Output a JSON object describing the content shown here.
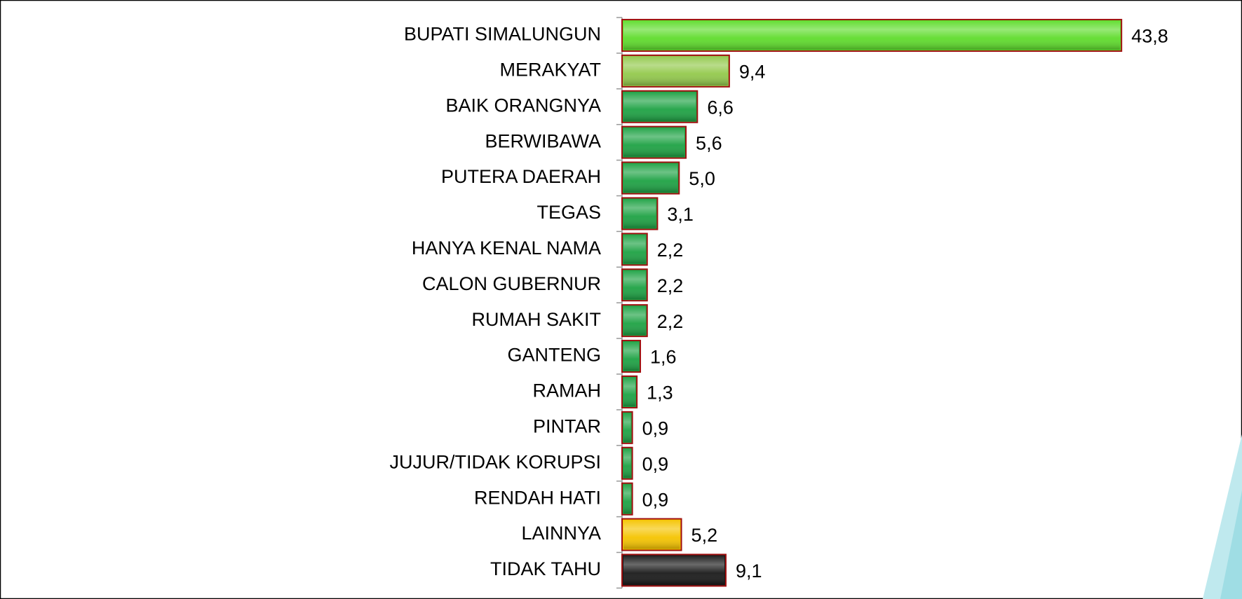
{
  "chart_data": {
    "type": "hbar",
    "categories": [
      "BUPATI SIMALUNGUN",
      "MERAKYAT",
      "BAIK ORANGNYA",
      "BERWIBAWA",
      "PUTERA DAERAH",
      "TEGAS",
      "HANYA KENAL NAMA",
      "CALON GUBERNUR",
      "RUMAH SAKIT",
      "GANTENG",
      "RAMAH",
      "PINTAR",
      "JUJUR/TIDAK KORUPSI",
      "RENDAH HATI",
      "LAINNYA",
      "TIDAK TAHU"
    ],
    "values": [
      43.8,
      9.4,
      6.6,
      5.6,
      5.0,
      3.1,
      2.2,
      2.2,
      2.2,
      1.6,
      1.3,
      0.9,
      0.9,
      0.9,
      5.2,
      9.1
    ],
    "value_labels": [
      "43,8",
      "9,4",
      "6,6",
      "5,6",
      "5,0",
      "3,1",
      "2,2",
      "2,2",
      "2,2",
      "1,6",
      "1,3",
      "0,9",
      "0,9",
      "0,9",
      "5,2",
      "9,1"
    ],
    "colors": [
      "#5fdc2c",
      "#93c94c",
      "#1ea244",
      "#1ea244",
      "#1ea244",
      "#1ea244",
      "#1ea244",
      "#1ea244",
      "#1ea244",
      "#1ea244",
      "#1ea244",
      "#1ea244",
      "#1ea244",
      "#1ea244",
      "#f5c400",
      "#1a1a1a"
    ],
    "xlim": [
      0,
      50
    ]
  }
}
